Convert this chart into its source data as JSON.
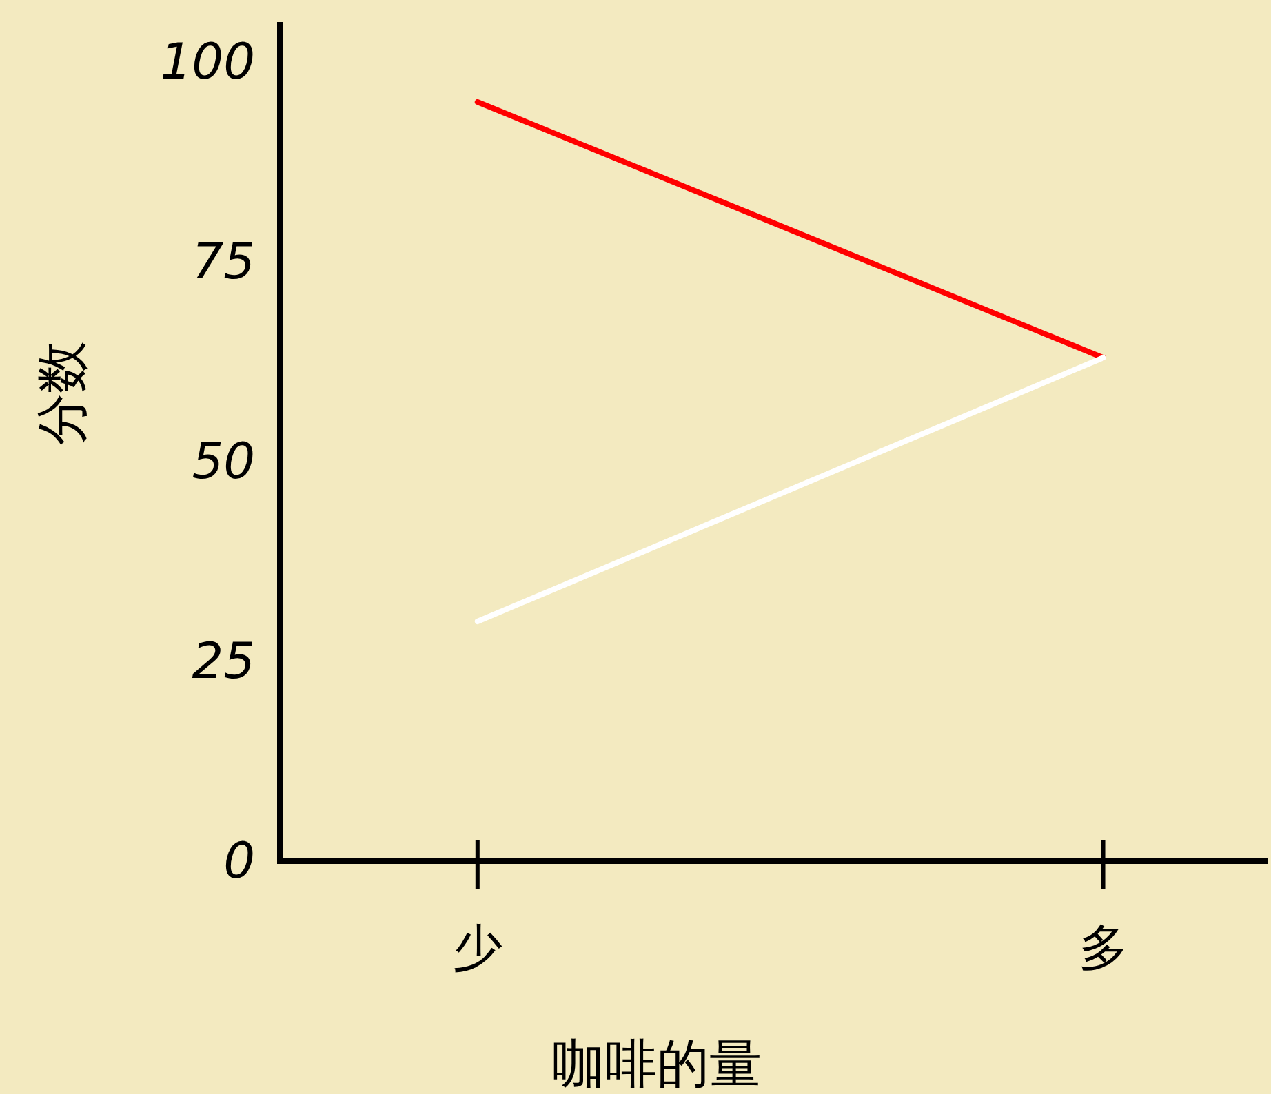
{
  "chart_data": {
    "type": "line",
    "xlabel": "咖啡的量",
    "ylabel": "分数",
    "categories": [
      "少",
      "多"
    ],
    "series": [
      {
        "color": "#ff0000",
        "values": [
          95,
          63
        ]
      },
      {
        "color": "#ffffff",
        "values": [
          30,
          63
        ]
      }
    ],
    "ylim": [
      0,
      105
    ],
    "yticks": [
      0,
      25,
      50,
      75,
      100
    ]
  }
}
